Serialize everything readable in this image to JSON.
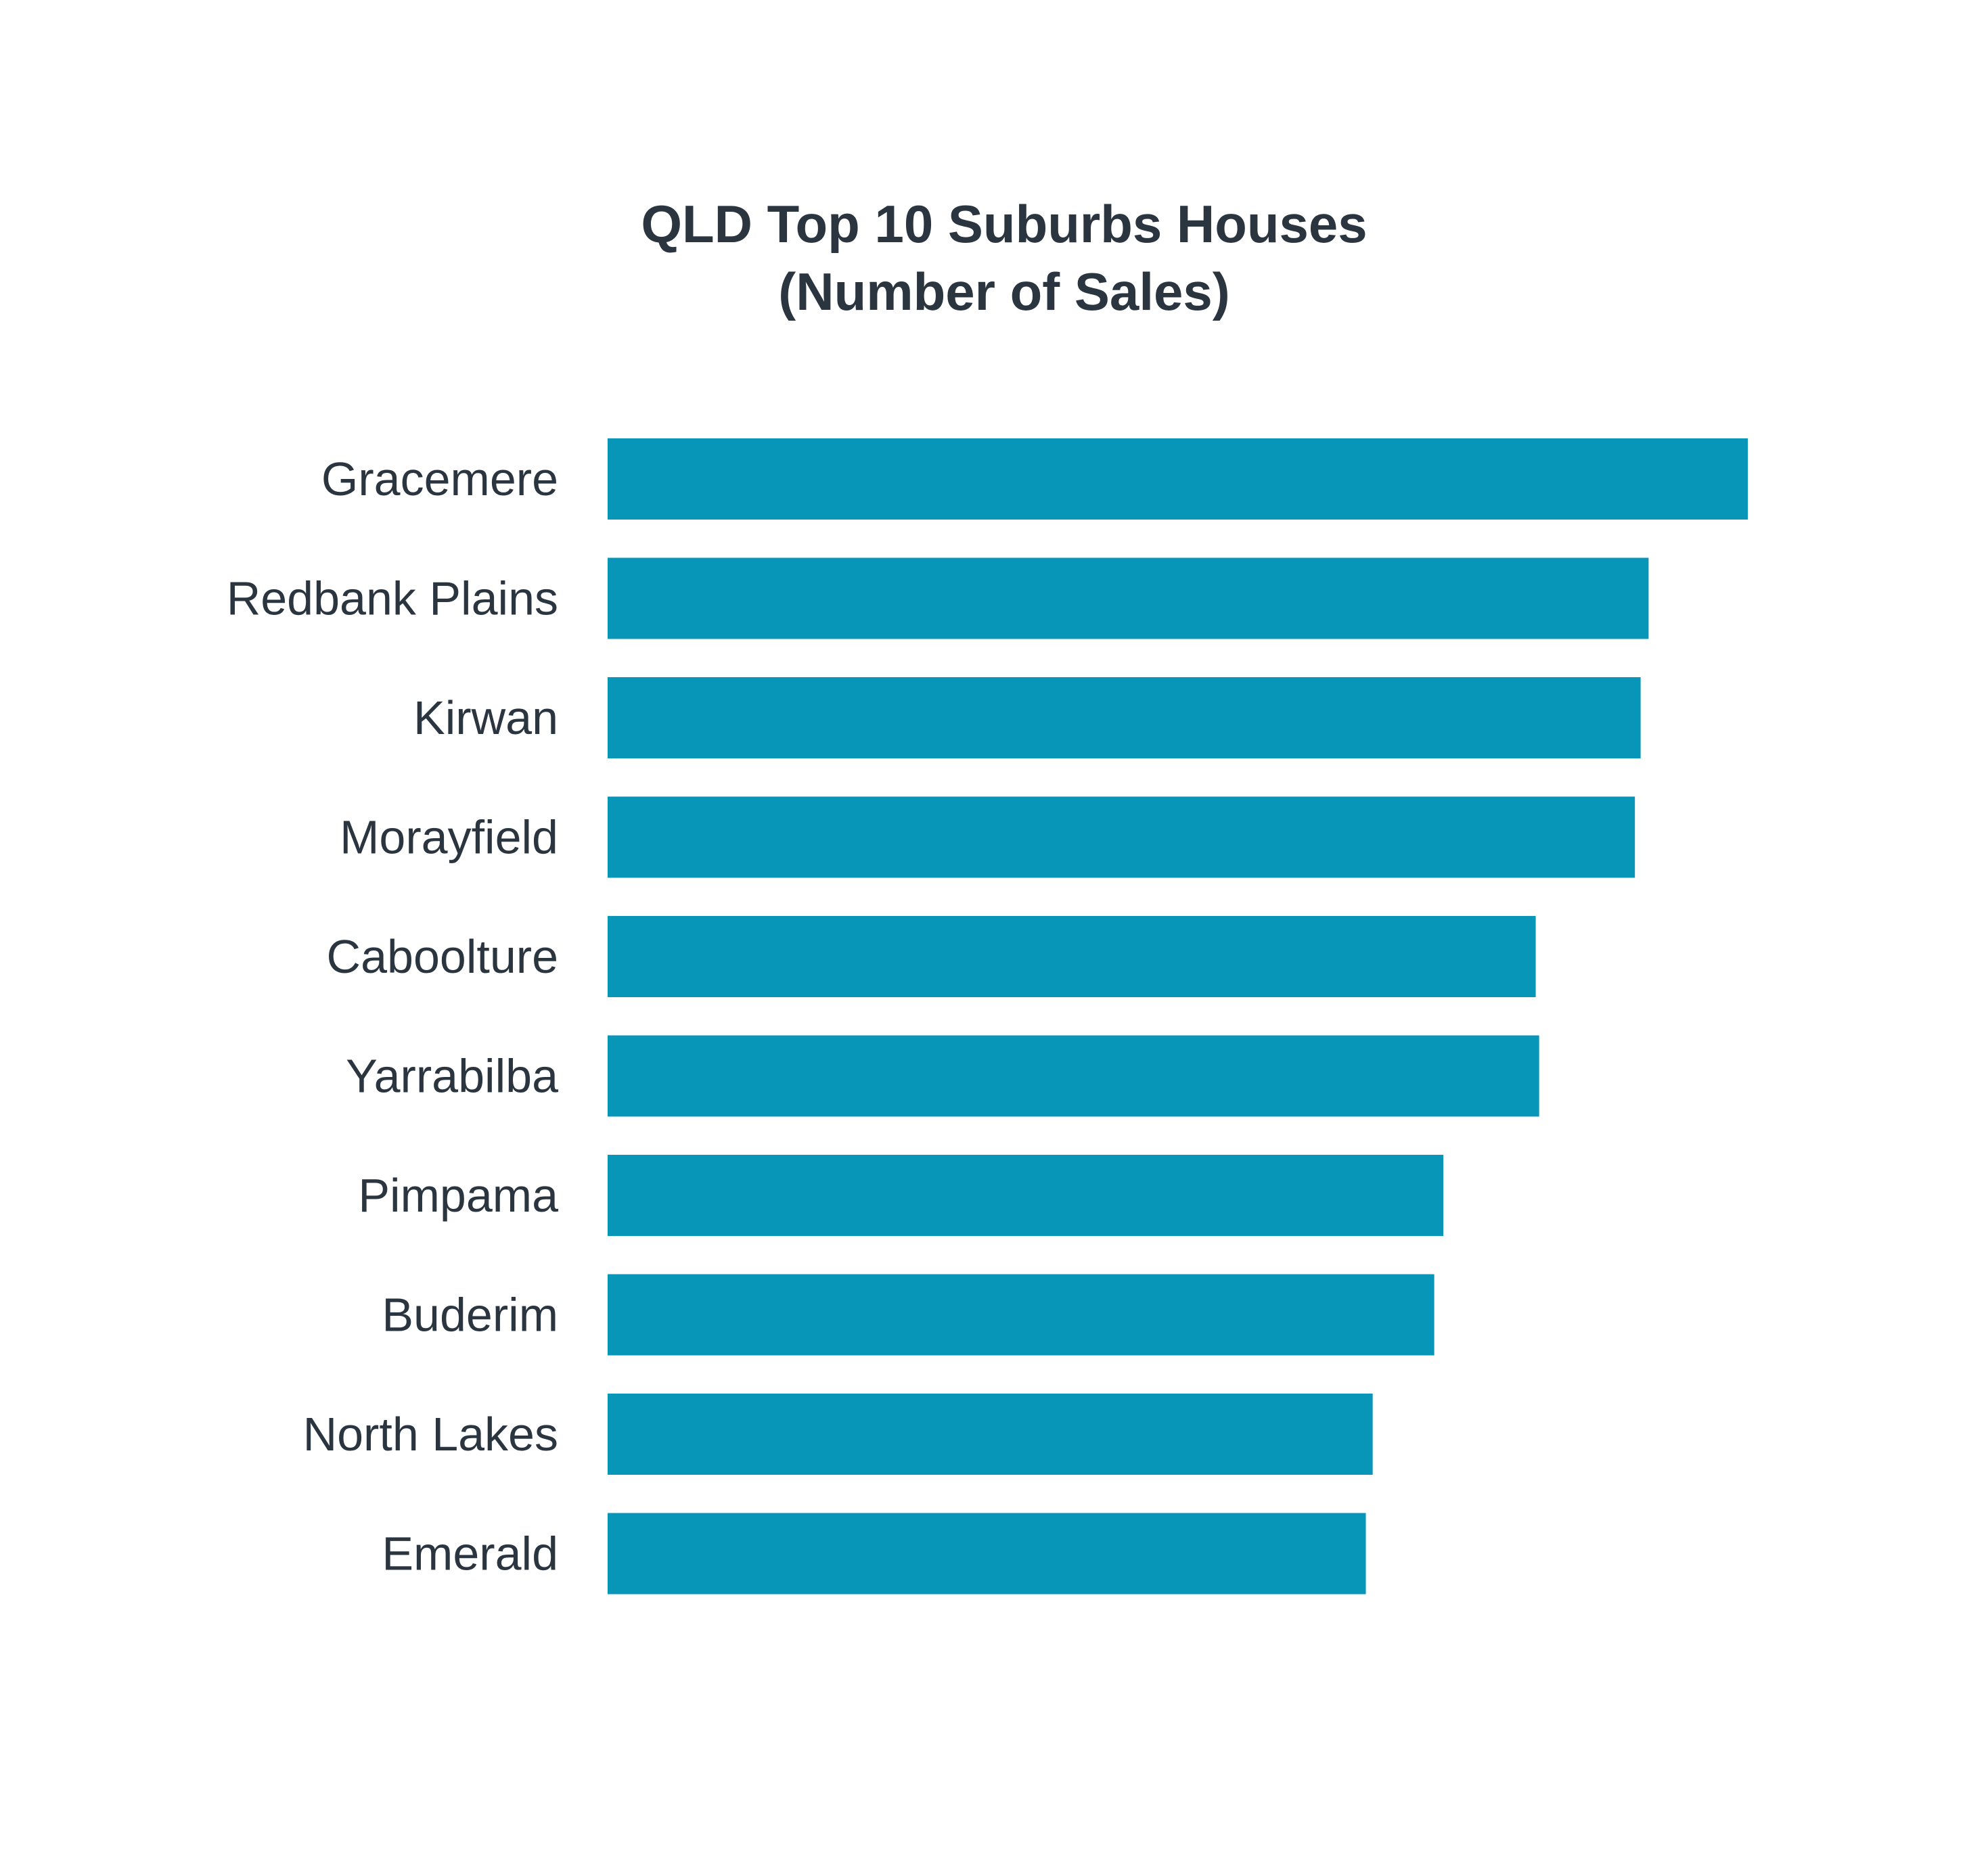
{
  "chart_data": {
    "type": "bar",
    "orientation": "horizontal",
    "title": "QLD Top 10 Suburbs Houses",
    "subtitle": "(Number of Sales)",
    "categories": [
      "Gracemere",
      "Redbank Plains",
      "Kirwan",
      "Morayfield",
      "Caboolture",
      "Yarrabilba",
      "Pimpama",
      "Buderim",
      "North Lakes",
      "Emerald"
    ],
    "values": [
      100,
      91.3,
      90.6,
      90.1,
      81.4,
      81.7,
      73.3,
      72.5,
      67.1,
      66.5
    ],
    "xlim": [
      0,
      100
    ],
    "bar_color": "#0796b8",
    "grid": false,
    "legend": "none",
    "xaxis_visible": false
  }
}
